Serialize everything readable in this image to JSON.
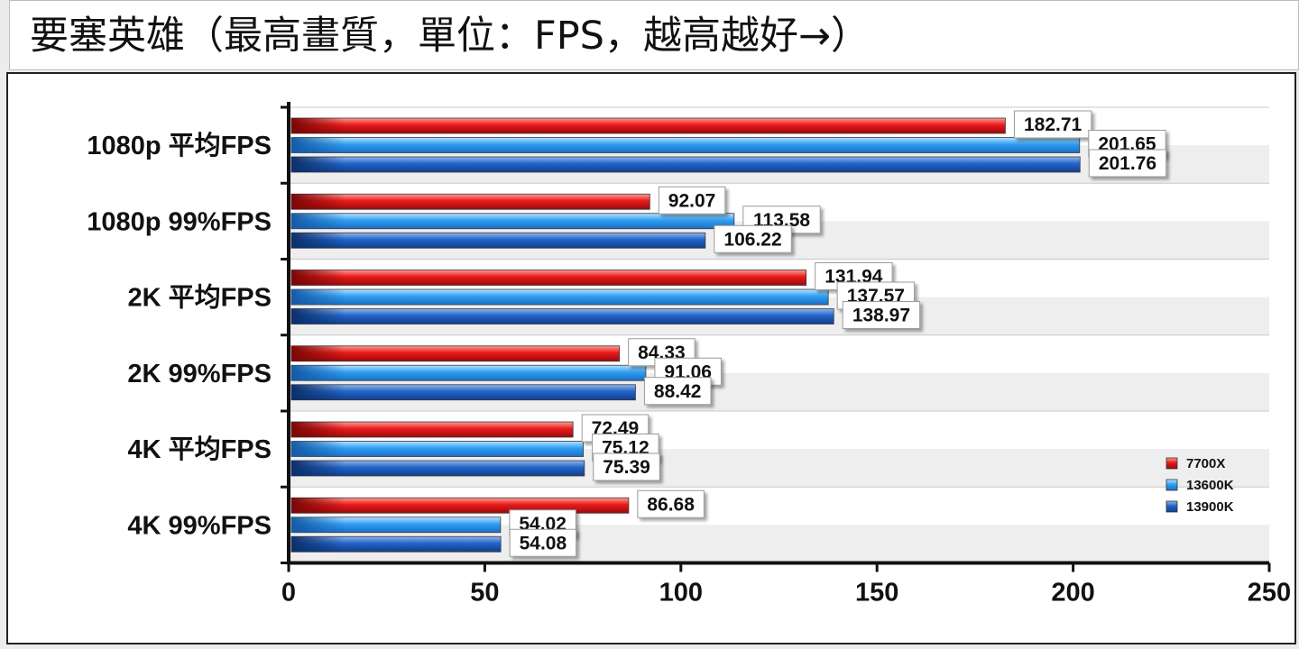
{
  "title": "要塞英雄（最高畫質，單位：FPS，越高越好→）",
  "chart_data": {
    "type": "bar",
    "orientation": "horizontal",
    "title": "要塞英雄（最高畫質，單位：FPS，越高越好→）",
    "categories": [
      "1080p 平均FPS",
      "1080p 99%FPS",
      "2K 平均FPS",
      "2K 99%FPS",
      "4K 平均FPS",
      "4K 99%FPS"
    ],
    "series": [
      {
        "name": "7700X",
        "color": "#e0141a",
        "values": [
          182.71,
          92.07,
          131.94,
          84.33,
          72.49,
          86.68
        ]
      },
      {
        "name": "13600K",
        "color": "#2e9ef2",
        "values": [
          201.65,
          113.58,
          137.57,
          91.06,
          75.12,
          54.02
        ]
      },
      {
        "name": "13900K",
        "color": "#1d5fc0",
        "values": [
          201.76,
          106.22,
          138.97,
          88.42,
          75.39,
          54.08
        ]
      }
    ],
    "xlim": [
      0,
      250
    ],
    "xticks": [
      "0",
      "50",
      "100",
      "150",
      "200",
      "250"
    ],
    "legend_position": "bottom-right",
    "grid": false
  }
}
